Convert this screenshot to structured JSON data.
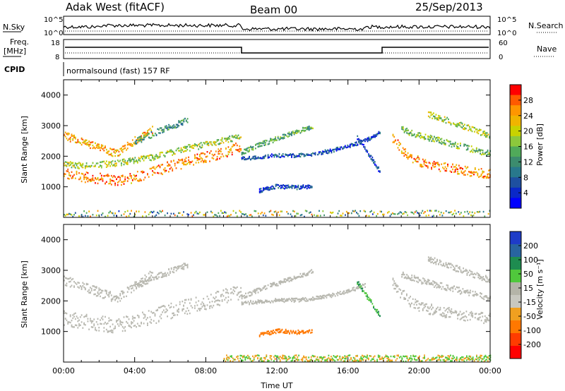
{
  "header": {
    "station": "Adak West (fitACF)",
    "beam": "Beam 00",
    "date": "25/Sep/2013"
  },
  "top_panels": {
    "nsky_label": "N.Sky",
    "nsearch_label": "N.Search",
    "noise_ticks_left": [
      "10^5",
      "10^0"
    ],
    "noise_ticks_right": [
      "10^5",
      "10^0"
    ],
    "freq_label_1": "Freq.",
    "freq_label_2": "[MHz]",
    "freq_ticks": [
      "18",
      "8"
    ],
    "nave_label": "Nave",
    "nave_ticks": [
      "60",
      "0"
    ],
    "cpid_label": "CPID",
    "cpid_text": "normalsound (fast) 157 RF"
  },
  "power_colorbar": {
    "title": "Power [dB]",
    "ticks": [
      "28",
      "24",
      "20",
      "16",
      "12",
      "8",
      "4"
    ],
    "colors": [
      "#ff0000",
      "#ff5a00",
      "#ff9600",
      "#f0b400",
      "#c8d200",
      "#8cc83c",
      "#50aa5a",
      "#3c8c6e",
      "#28788c",
      "#1e50a0",
      "#0a28c8",
      "#0000ff"
    ]
  },
  "velocity_colorbar": {
    "title": "Velocity [m s⁻¹]",
    "ticks": [
      "200",
      "100",
      "50",
      "15",
      "-15",
      "-50",
      "-100",
      "-200"
    ],
    "colors": [
      "#1e3cc8",
      "#2864a0",
      "#1e8c50",
      "#50c83c",
      "#b4b4a8",
      "#c8c8c0",
      "#f0a020",
      "#ff7800",
      "#ff3c00",
      "#ff0000"
    ]
  },
  "chart_data": [
    {
      "type": "heatmap",
      "name": "power",
      "ylabel": "Slant Range [km]",
      "yticks": [
        "4000",
        "3000",
        "2000",
        "1000"
      ],
      "ylim": [
        0,
        4500
      ],
      "xlim": [
        0,
        24
      ],
      "xticks": [
        "00:00",
        "04:00",
        "08:00",
        "12:00",
        "16:00",
        "20:00",
        "00:00"
      ],
      "bands": [
        {
          "x": [
            0,
            1,
            2,
            3,
            4,
            5,
            6,
            7,
            8,
            9,
            10
          ],
          "y": [
            1450,
            1350,
            1300,
            1200,
            1350,
            1500,
            1700,
            1850,
            2000,
            2150,
            2350
          ],
          "width": 350,
          "value": 26
        },
        {
          "x": [
            0,
            1,
            2,
            3,
            4,
            5,
            6,
            7,
            8,
            9,
            10
          ],
          "y": [
            1800,
            1700,
            1750,
            1800,
            1900,
            2000,
            2150,
            2300,
            2400,
            2550,
            2650
          ],
          "width": 200,
          "value": 18
        },
        {
          "x": [
            0,
            1,
            2,
            3,
            4,
            5
          ],
          "y": [
            2700,
            2500,
            2300,
            2100,
            2550,
            2900
          ],
          "width": 250,
          "value": 24
        },
        {
          "x": [
            4,
            5,
            6,
            7
          ],
          "y": [
            2500,
            2750,
            3000,
            3200
          ],
          "width": 200,
          "value": 12
        },
        {
          "x": [
            10,
            11,
            12,
            13,
            14
          ],
          "y": [
            2150,
            2400,
            2600,
            2800,
            3000
          ],
          "width": 150,
          "value": 14
        },
        {
          "x": [
            10,
            11,
            12,
            13,
            14,
            15,
            16,
            17,
            17.8
          ],
          "y": [
            1950,
            2000,
            2050,
            2050,
            2100,
            2200,
            2350,
            2550,
            2800
          ],
          "width": 120,
          "value": 6
        },
        {
          "x": [
            16.5,
            17,
            17.5,
            17.8
          ],
          "y": [
            2650,
            2200,
            1800,
            1500
          ],
          "width": 150,
          "value": 6
        },
        {
          "x": [
            11,
            12,
            13,
            14
          ],
          "y": [
            900,
            1050,
            1000,
            1050
          ],
          "width": 130,
          "value": 6
        },
        {
          "x": [
            18.5,
            19,
            19.5,
            20,
            21,
            22,
            23,
            24
          ],
          "y": [
            2600,
            2250,
            2000,
            1850,
            1700,
            1600,
            1500,
            1450
          ],
          "width": 300,
          "value": 26
        },
        {
          "x": [
            19,
            20,
            21,
            22,
            23,
            24
          ],
          "y": [
            2900,
            2700,
            2550,
            2400,
            2250,
            2100
          ],
          "width": 200,
          "value": 16
        },
        {
          "x": [
            20.5,
            21,
            22,
            23,
            24
          ],
          "y": [
            3400,
            3300,
            3100,
            2900,
            2700
          ],
          "width": 200,
          "value": 18
        },
        {
          "x": [
            0,
            24
          ],
          "y": [
            150,
            150
          ],
          "width": 200,
          "value": 14
        }
      ]
    },
    {
      "type": "heatmap",
      "name": "velocity",
      "ylabel": "Slant Range [km]",
      "yticks": [
        "4000",
        "3000",
        "2000",
        "1000"
      ],
      "ylim": [
        0,
        4500
      ],
      "xlim": [
        0,
        24
      ],
      "xticks": [
        "00:00",
        "04:00",
        "08:00",
        "12:00",
        "16:00",
        "20:00",
        "00:00"
      ],
      "xlabel": "Time UT",
      "bands": [
        {
          "x": [
            0,
            1,
            2,
            3,
            4,
            5,
            6,
            7,
            8,
            9,
            10
          ],
          "y": [
            1450,
            1350,
            1300,
            1200,
            1350,
            1500,
            1700,
            1850,
            2000,
            2150,
            2350
          ],
          "width": 500,
          "value": 0
        },
        {
          "x": [
            0,
            1,
            2,
            3,
            4,
            5
          ],
          "y": [
            2700,
            2500,
            2300,
            2100,
            2550,
            2900
          ],
          "width": 300,
          "value": 0
        },
        {
          "x": [
            4,
            5,
            6,
            7
          ],
          "y": [
            2500,
            2750,
            3000,
            3200
          ],
          "width": 200,
          "value": 0
        },
        {
          "x": [
            10,
            11,
            12,
            13,
            14
          ],
          "y": [
            2150,
            2400,
            2600,
            2800,
            3000
          ],
          "width": 150,
          "value": 0
        },
        {
          "x": [
            10,
            11,
            12,
            13,
            14,
            15,
            16,
            17
          ],
          "y": [
            1950,
            2000,
            2050,
            2050,
            2100,
            2200,
            2350,
            2550
          ],
          "width": 120,
          "value": 0
        },
        {
          "x": [
            16.5,
            17,
            17.5,
            17.8
          ],
          "y": [
            2650,
            2200,
            1800,
            1500
          ],
          "width": 150,
          "value": 30
        },
        {
          "x": [
            11,
            12,
            13,
            14
          ],
          "y": [
            900,
            1050,
            1000,
            1050
          ],
          "width": 130,
          "value": -60
        },
        {
          "x": [
            18.5,
            19,
            19.5,
            20,
            21,
            22,
            23,
            24
          ],
          "y": [
            2600,
            2250,
            2000,
            1850,
            1700,
            1600,
            1500,
            1450
          ],
          "width": 350,
          "value": 0
        },
        {
          "x": [
            19,
            20,
            21,
            22,
            23,
            24
          ],
          "y": [
            2900,
            2700,
            2550,
            2400,
            2250,
            2100
          ],
          "width": 200,
          "value": 0
        },
        {
          "x": [
            20.5,
            21,
            22,
            23,
            24
          ],
          "y": [
            3400,
            3300,
            3100,
            2900,
            2700
          ],
          "width": 200,
          "value": 0
        },
        {
          "x": [
            9,
            24
          ],
          "y": [
            150,
            150
          ],
          "width": 200,
          "value": 30
        }
      ]
    }
  ]
}
